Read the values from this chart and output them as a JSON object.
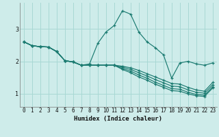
{
  "xlabel": "Humidex (Indice chaleur)",
  "background_color": "#ceecea",
  "grid_color": "#a8d8d4",
  "line_color": "#1a7a70",
  "xlim": [
    -0.5,
    23.5
  ],
  "ylim": [
    0.6,
    3.8
  ],
  "yticks": [
    1,
    2,
    3
  ],
  "xticks": [
    0,
    1,
    2,
    3,
    4,
    5,
    6,
    7,
    8,
    9,
    10,
    11,
    12,
    13,
    14,
    15,
    16,
    17,
    18,
    19,
    20,
    21,
    22,
    23
  ],
  "lines": [
    [
      2.6,
      2.48,
      2.45,
      2.44,
      2.3,
      2.02,
      1.98,
      1.88,
      1.92,
      2.55,
      2.9,
      3.1,
      3.55,
      3.45,
      2.9,
      2.6,
      2.42,
      2.2,
      1.48,
      1.95,
      2.0,
      1.92,
      1.88,
      1.95
    ],
    [
      2.6,
      2.48,
      2.45,
      2.44,
      2.3,
      2.02,
      1.98,
      1.88,
      1.88,
      1.88,
      1.88,
      1.88,
      1.85,
      1.8,
      1.72,
      1.62,
      1.52,
      1.42,
      1.32,
      1.3,
      1.2,
      1.12,
      1.08,
      1.35
    ],
    [
      2.6,
      2.48,
      2.45,
      2.44,
      2.3,
      2.02,
      1.98,
      1.88,
      1.88,
      1.88,
      1.88,
      1.88,
      1.82,
      1.75,
      1.65,
      1.55,
      1.44,
      1.34,
      1.24,
      1.22,
      1.12,
      1.05,
      1.02,
      1.28
    ],
    [
      2.6,
      2.48,
      2.45,
      2.44,
      2.3,
      2.02,
      1.98,
      1.88,
      1.88,
      1.88,
      1.88,
      1.88,
      1.78,
      1.7,
      1.58,
      1.48,
      1.36,
      1.26,
      1.16,
      1.14,
      1.05,
      0.98,
      0.96,
      1.22
    ],
    [
      2.6,
      2.48,
      2.45,
      2.44,
      2.3,
      2.02,
      1.98,
      1.88,
      1.88,
      1.88,
      1.88,
      1.88,
      1.75,
      1.65,
      1.52,
      1.42,
      1.3,
      1.2,
      1.1,
      1.08,
      1.0,
      0.94,
      0.92,
      1.18
    ]
  ]
}
